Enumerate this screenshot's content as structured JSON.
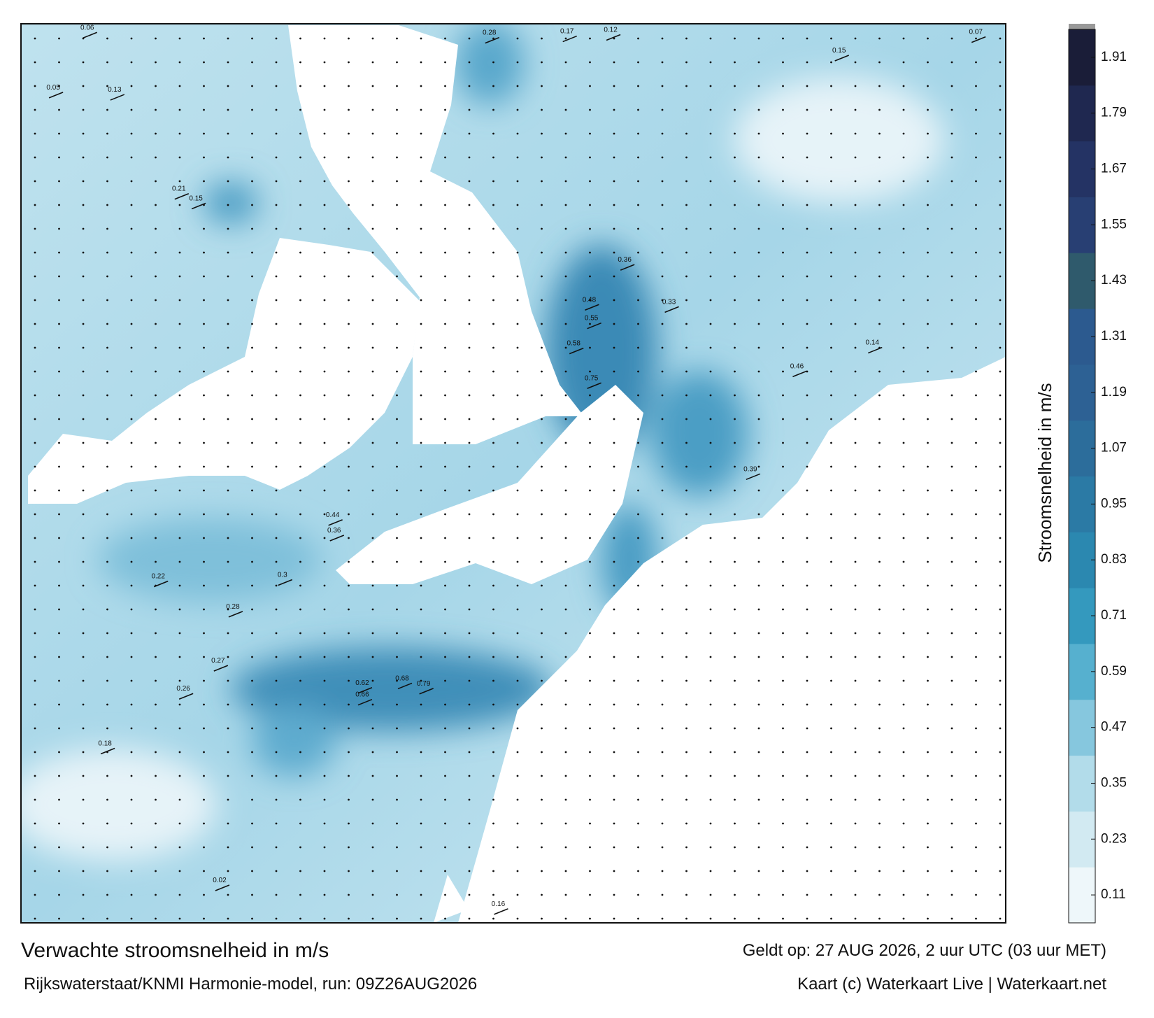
{
  "map": {
    "speed_labels": [
      0.06,
      0.28,
      0.17,
      0.12,
      0.07,
      0.15,
      0.05,
      0.13,
      0.21,
      0.15,
      0.36,
      0.48,
      0.55,
      0.58,
      0.75,
      0.46,
      0.33,
      0.44,
      0.36,
      0.79,
      0.68,
      0.66,
      0.62,
      0.3,
      0.28,
      0.22,
      0.27,
      0.26,
      0.18,
      0.02,
      0.16,
      0.14,
      0.39
    ],
    "colorbar": {
      "label": "Stroomsnelheid in m/s",
      "range": [
        0.05,
        1.97
      ],
      "ticks": [
        0.11,
        0.23,
        0.35,
        0.47,
        0.59,
        0.71,
        0.83,
        0.95,
        1.07,
        1.19,
        1.31,
        1.43,
        1.55,
        1.67,
        1.79,
        1.91
      ],
      "colors": [
        "#eef7fa",
        "#d2eaf2",
        "#b2dcea",
        "#86c7de",
        "#56b0cf",
        "#3499be",
        "#2b88b0",
        "#2b7aa5",
        "#2c6d9b",
        "#2d6194",
        "#2c5a8f",
        "#2f5a6c",
        "#283f73",
        "#243364",
        "#1f2850",
        "#1a1d38"
      ]
    },
    "title": "Verwachte stroomsnelheid in m/s",
    "valid_time": "Geldt op: 27 AUG 2026, 2 uur UTC (03 uur MET)",
    "source": "Rijkswaterstaat/KNMI Harmonie-model, run: 09Z26AUG2026",
    "credit": "Kaart (c) Waterkaart Live | Waterkaart.net"
  }
}
